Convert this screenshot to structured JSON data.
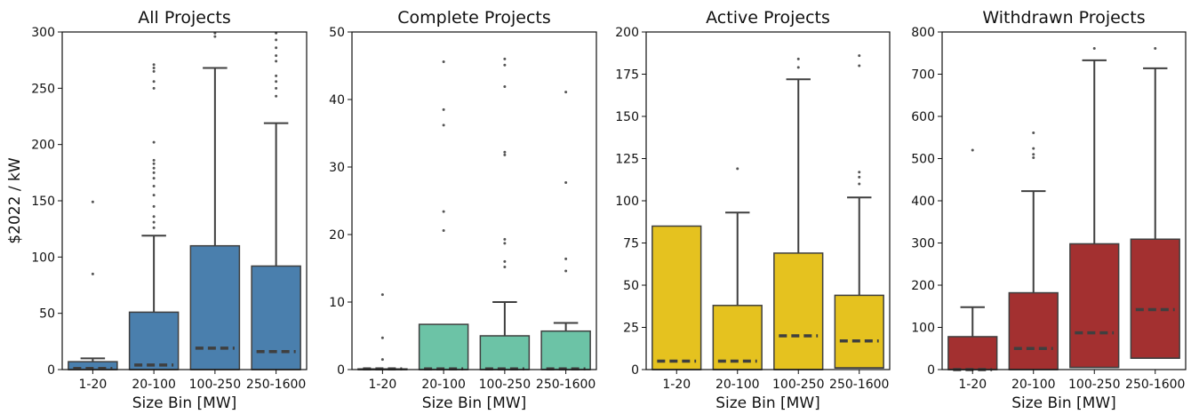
{
  "figure": {
    "ylabel": "$2022 / kW"
  },
  "chart_data": [
    {
      "type": "box",
      "title": "All Projects",
      "xlabel": "Size Bin [MW]",
      "ylabel": "$2022 / kW",
      "color": "#4a7fad",
      "ylim": [
        0,
        300
      ],
      "yticks": [
        0,
        50,
        100,
        150,
        200,
        250,
        300
      ],
      "categories": [
        "1-20",
        "20-100",
        "100-250",
        "250-1600"
      ],
      "boxes": [
        {
          "whislo": 0,
          "q1": 0,
          "med": 0,
          "mean": 1,
          "q3": 7,
          "whishi": 10,
          "fliers": [
            85,
            149
          ]
        },
        {
          "whislo": 0,
          "q1": 0,
          "med": 0,
          "mean": 4,
          "q3": 51,
          "whishi": 119,
          "fliers": [
            126,
            131,
            136,
            145,
            155,
            163,
            170,
            175,
            179,
            183,
            186,
            202,
            250,
            256,
            265,
            268,
            271
          ]
        },
        {
          "whislo": 0,
          "q1": 0,
          "med": 0,
          "mean": 19,
          "q3": 110,
          "whishi": 268,
          "fliers": [
            296,
            299
          ]
        },
        {
          "whislo": 0,
          "q1": 0,
          "med": 0,
          "mean": 16,
          "q3": 92,
          "whishi": 219,
          "fliers": [
            243,
            250,
            256,
            261,
            274,
            279,
            286,
            293,
            299
          ]
        }
      ]
    },
    {
      "type": "box",
      "title": "Complete Projects",
      "xlabel": "Size Bin [MW]",
      "ylabel": "",
      "color": "#6cc3a6",
      "ylim": [
        0,
        50
      ],
      "yticks": [
        0,
        10,
        20,
        30,
        40,
        50
      ],
      "categories": [
        "1-20",
        "20-100",
        "100-250",
        "250-1600"
      ],
      "boxes": [
        {
          "whislo": 0,
          "q1": 0,
          "med": 0,
          "mean": 0.1,
          "q3": 0.1,
          "whishi": 0.1,
          "fliers": [
            1.5,
            4.7,
            11.1
          ]
        },
        {
          "whislo": 0,
          "q1": 0,
          "med": 0,
          "mean": 0.1,
          "q3": 6.7,
          "whishi": 6.7,
          "fliers": [
            20.6,
            23.4,
            36.2,
            38.5,
            45.6
          ]
        },
        {
          "whislo": 0,
          "q1": 0,
          "med": 0,
          "mean": 0.1,
          "q3": 5.0,
          "whishi": 10.0,
          "fliers": [
            15.2,
            16.0,
            18.7,
            19.3,
            31.8,
            32.2,
            41.9,
            45.1,
            46.0
          ]
        },
        {
          "whislo": 0,
          "q1": 0,
          "med": 0,
          "mean": 0.1,
          "q3": 5.7,
          "whishi": 6.9,
          "fliers": [
            14.6,
            16.4,
            27.7,
            41.1
          ]
        }
      ]
    },
    {
      "type": "box",
      "title": "Active Projects",
      "xlabel": "Size Bin [MW]",
      "ylabel": "",
      "color": "#e5c21f",
      "ylim": [
        0,
        200
      ],
      "yticks": [
        0,
        25,
        50,
        75,
        100,
        125,
        150,
        175,
        200
      ],
      "categories": [
        "1-20",
        "20-100",
        "100-250",
        "250-1600"
      ],
      "boxes": [
        {
          "whislo": 0,
          "q1": 0,
          "med": 0,
          "mean": 5,
          "q3": 85,
          "whishi": 85,
          "fliers": []
        },
        {
          "whislo": 0,
          "q1": 0,
          "med": 0,
          "mean": 5,
          "q3": 38,
          "whishi": 93,
          "fliers": [
            119
          ]
        },
        {
          "whislo": 0,
          "q1": 0,
          "med": 0,
          "mean": 20,
          "q3": 69,
          "whishi": 172,
          "fliers": [
            179,
            184
          ]
        },
        {
          "whislo": 0,
          "q1": 1,
          "med": 1,
          "mean": 17,
          "q3": 44,
          "whishi": 102,
          "fliers": [
            110,
            114,
            117,
            180,
            186
          ]
        }
      ]
    },
    {
      "type": "box",
      "title": "Withdrawn Projects",
      "xlabel": "Size Bin [MW]",
      "ylabel": "",
      "color": "#a33030",
      "ylim": [
        0,
        800
      ],
      "yticks": [
        0,
        100,
        200,
        300,
        400,
        500,
        600,
        700,
        800
      ],
      "categories": [
        "1-20",
        "20-100",
        "100-250",
        "250-1600"
      ],
      "boxes": [
        {
          "whislo": 0,
          "q1": 0,
          "med": 0,
          "mean": 0,
          "q3": 78,
          "whishi": 148,
          "fliers": [
            520
          ]
        },
        {
          "whislo": 0,
          "q1": 0,
          "med": 0,
          "mean": 50,
          "q3": 182,
          "whishi": 423,
          "fliers": [
            502,
            510,
            524,
            561
          ]
        },
        {
          "whislo": 0,
          "q1": 5,
          "med": 5,
          "mean": 87,
          "q3": 298,
          "whishi": 733,
          "fliers": [
            761
          ]
        },
        {
          "whislo": 0,
          "q1": 27,
          "med": 27,
          "mean": 142,
          "q3": 309,
          "whishi": 714,
          "fliers": [
            761
          ]
        }
      ]
    }
  ]
}
